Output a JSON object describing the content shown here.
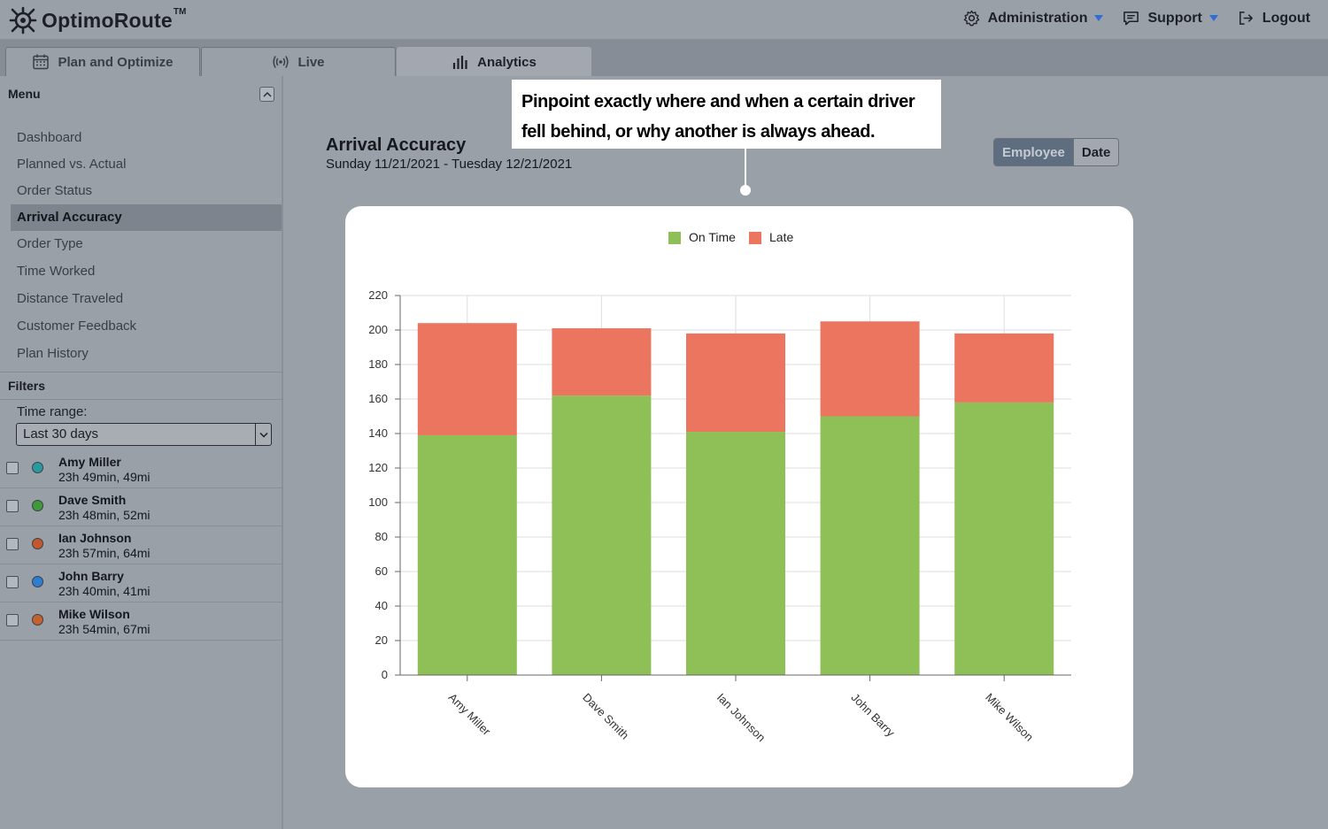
{
  "header": {
    "logo_text": "OptimoRoute",
    "logo_tm": "TM",
    "nav": [
      {
        "label": "Administration",
        "icon": "gear-icon"
      },
      {
        "label": "Support",
        "icon": "chat-icon"
      },
      {
        "label": "Logout",
        "icon": "logout-icon"
      }
    ]
  },
  "tabs": [
    {
      "label": "Plan and Optimize",
      "icon": "calendar-icon",
      "active": false
    },
    {
      "label": "Live",
      "icon": "broadcast-icon",
      "active": false
    },
    {
      "label": "Analytics",
      "icon": "bar-chart-icon",
      "active": true
    }
  ],
  "sidebar": {
    "menu_title": "Menu",
    "menu_items": [
      {
        "label": "Dashboard",
        "active": false
      },
      {
        "label": "Planned vs. Actual",
        "active": false
      },
      {
        "label": "Order Status",
        "active": false
      },
      {
        "label": "Arrival Accuracy",
        "active": true
      },
      {
        "label": "Order Type",
        "active": false
      },
      {
        "label": "Time Worked",
        "active": false
      },
      {
        "label": "Distance Traveled",
        "active": false
      },
      {
        "label": "Customer Feedback",
        "active": false
      },
      {
        "label": "Plan History",
        "active": false
      }
    ],
    "filters_title": "Filters",
    "time_range_label": "Time range:",
    "time_range_value": "Last 30 days",
    "drivers": [
      {
        "name": "Amy Miller",
        "info": "23h 49min, 49mi",
        "color": "#2a9aa0"
      },
      {
        "name": "Dave Smith",
        "info": "23h 48min, 52mi",
        "color": "#3f9a3a"
      },
      {
        "name": "Ian Johnson",
        "info": "23h 57min, 64mi",
        "color": "#c4572e"
      },
      {
        "name": "John Barry",
        "info": "23h 40min, 41mi",
        "color": "#2e7ed0"
      },
      {
        "name": "Mike Wilson",
        "info": "23h 54min, 67mi",
        "color": "#c4612e"
      }
    ]
  },
  "main": {
    "title": "Arrival Accuracy",
    "date_range": "Sunday 11/21/2021 - Tuesday 12/21/2021",
    "toggle": {
      "employee": "Employee",
      "date": "Date"
    }
  },
  "callout": {
    "line1": "Pinpoint exactly where and when a certain driver",
    "line2": "fell behind, or why another is always ahead."
  },
  "chart_data": {
    "type": "bar",
    "stacked": true,
    "categories": [
      "Amy Miller",
      "Dave Smith",
      "Ian Johnson",
      "John Barry",
      "Mike Wilson"
    ],
    "series": [
      {
        "name": "On Time",
        "color": "#8fc057",
        "values": [
          139,
          162,
          141,
          150,
          158
        ]
      },
      {
        "name": "Late",
        "color": "#ec755f",
        "values": [
          65,
          39,
          57,
          55,
          40
        ]
      }
    ],
    "ylim": [
      0,
      220
    ],
    "yticks": [
      0,
      20,
      40,
      60,
      80,
      100,
      120,
      140,
      160,
      180,
      200,
      220
    ],
    "grid": true,
    "legend_position": "top-center"
  }
}
